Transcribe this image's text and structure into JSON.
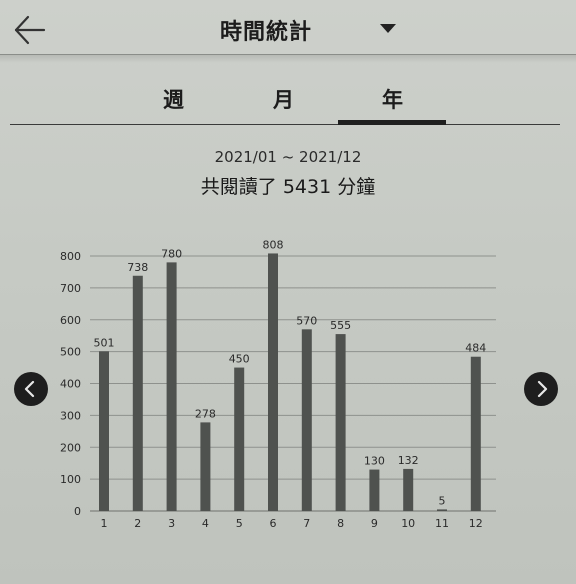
{
  "header": {
    "title": "時間統計",
    "back_icon": "arrow-left-icon",
    "dropdown_icon": "caret-down-icon"
  },
  "tabs": [
    {
      "label": "週",
      "selected": false
    },
    {
      "label": "月",
      "selected": false
    },
    {
      "label": "年",
      "selected": true
    }
  ],
  "summary": {
    "range": "2021/01 ~ 2021/12",
    "total": "共閱讀了 5431 分鐘"
  },
  "nav": {
    "prev_icon": "chevron-left-icon",
    "next_icon": "chevron-right-icon"
  },
  "colors": {
    "bar": "#4f524f",
    "accent": "#1e1e1e"
  },
  "chart_data": {
    "type": "bar",
    "categories": [
      "1",
      "2",
      "3",
      "4",
      "5",
      "6",
      "7",
      "8",
      "9",
      "10",
      "11",
      "12"
    ],
    "values": [
      501,
      738,
      780,
      278,
      450,
      808,
      570,
      555,
      130,
      132,
      5,
      484
    ],
    "data_labels": [
      "501",
      "738",
      "780",
      "278",
      "450",
      "808",
      "570",
      "555",
      "130",
      "132",
      "5",
      "484"
    ],
    "y_ticks": [
      "0",
      "100",
      "200",
      "300",
      "400",
      "500",
      "600",
      "700",
      "800"
    ],
    "ylim": [
      0,
      800
    ],
    "grid": true,
    "title": "",
    "xlabel": "",
    "ylabel": ""
  }
}
